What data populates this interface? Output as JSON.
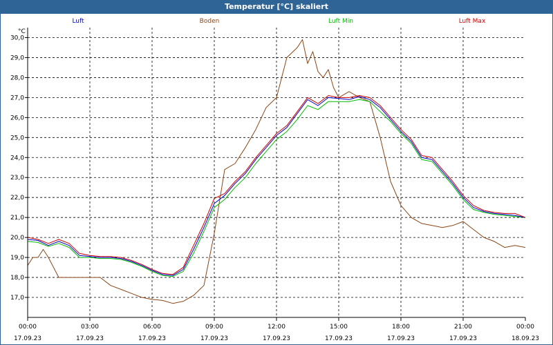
{
  "window": {
    "title": "Temperatur [°C] skaliert"
  },
  "chart_data": {
    "type": "line",
    "title": "Temperatur [°C] skaliert",
    "ylabel": "°C",
    "ylim": [
      16.0,
      30.5
    ],
    "xlim_hours": [
      0,
      24
    ],
    "grid": true,
    "legend_placement": "top",
    "yticks": [
      "17,0",
      "18,0",
      "19,0",
      "20,0",
      "21,0",
      "22,0",
      "23,0",
      "24,0",
      "25,0",
      "26,0",
      "27,0",
      "28,0",
      "29,0",
      "30,0"
    ],
    "xticks": [
      {
        "time": "00:00",
        "date": "17.09.23"
      },
      {
        "time": "03:00",
        "date": "17.09.23"
      },
      {
        "time": "06:00",
        "date": "17.09.23"
      },
      {
        "time": "09:00",
        "date": "17.09.23"
      },
      {
        "time": "12:00",
        "date": "17.09.23"
      },
      {
        "time": "15:00",
        "date": "17.09.23"
      },
      {
        "time": "18:00",
        "date": "17.09.23"
      },
      {
        "time": "21:00",
        "date": "17.09.23"
      },
      {
        "time": "00:00",
        "date": "18.09.23"
      }
    ],
    "series": [
      {
        "name": "Luft",
        "color": "#0000cc",
        "x": [
          0,
          0.5,
          1,
          1.5,
          2,
          2.5,
          3,
          3.5,
          4,
          4.5,
          5,
          5.5,
          6,
          6.5,
          7,
          7.5,
          8,
          8.5,
          9,
          9.5,
          10,
          10.5,
          11,
          11.5,
          12,
          12.5,
          13,
          13.5,
          14,
          14.5,
          15,
          15.5,
          16,
          16.5,
          17,
          17.5,
          18,
          18.5,
          19,
          19.5,
          20,
          20.5,
          21,
          21.5,
          22,
          22.5,
          23,
          23.5,
          24
        ],
        "y": [
          19.9,
          19.85,
          19.6,
          19.8,
          19.6,
          19.1,
          19.05,
          19.0,
          19.0,
          18.95,
          18.8,
          18.6,
          18.35,
          18.15,
          18.1,
          18.4,
          19.4,
          20.5,
          21.7,
          22.1,
          22.7,
          23.2,
          23.9,
          24.5,
          25.1,
          25.5,
          26.2,
          26.9,
          26.6,
          27.0,
          26.95,
          26.9,
          27.05,
          26.9,
          26.5,
          25.9,
          25.3,
          24.8,
          24.0,
          23.9,
          23.3,
          22.7,
          22.0,
          21.5,
          21.3,
          21.2,
          21.15,
          21.1,
          21.0
        ]
      },
      {
        "name": "Boden",
        "color": "#8b4513",
        "x": [
          0,
          0.25,
          0.5,
          0.75,
          1,
          1.5,
          2,
          2.5,
          3,
          3.5,
          4,
          4.5,
          5,
          5.5,
          6,
          6.5,
          7,
          7.5,
          8,
          8.5,
          9,
          9.5,
          10,
          10.5,
          11,
          11.5,
          12,
          12.5,
          13,
          13.25,
          13.5,
          13.75,
          14,
          14.25,
          14.5,
          14.75,
          15,
          15.5,
          16,
          16.5,
          17,
          17.5,
          18,
          18.5,
          19,
          19.5,
          20,
          20.5,
          21,
          21.5,
          22,
          22.5,
          23,
          23.5,
          24
        ],
        "y": [
          18.6,
          19.0,
          19.0,
          19.4,
          19.0,
          18.0,
          18.0,
          18.0,
          18.0,
          18.0,
          17.6,
          17.4,
          17.2,
          17.0,
          16.9,
          16.85,
          16.7,
          16.8,
          17.1,
          17.6,
          20.2,
          23.4,
          23.7,
          24.5,
          25.4,
          26.5,
          27.0,
          29.0,
          29.5,
          29.9,
          28.7,
          29.3,
          28.3,
          28.0,
          28.4,
          27.5,
          27.0,
          27.3,
          27.0,
          26.8,
          25.0,
          22.8,
          21.6,
          21.0,
          20.7,
          20.6,
          20.5,
          20.6,
          20.8,
          20.4,
          20.0,
          19.8,
          19.5,
          19.6,
          19.5
        ]
      },
      {
        "name": "Luft Min",
        "color": "#00bb00",
        "x": [
          0,
          0.5,
          1,
          1.5,
          2,
          2.5,
          3,
          3.5,
          4,
          4.5,
          5,
          5.5,
          6,
          6.5,
          7,
          7.5,
          8,
          8.5,
          9,
          9.5,
          10,
          10.5,
          11,
          11.5,
          12,
          12.5,
          13,
          13.5,
          14,
          14.5,
          15,
          15.5,
          16,
          16.5,
          17,
          17.5,
          18,
          18.5,
          19,
          19.5,
          20,
          20.5,
          21,
          21.5,
          22,
          22.5,
          23,
          23.5,
          24
        ],
        "y": [
          19.8,
          19.75,
          19.55,
          19.7,
          19.5,
          19.0,
          19.0,
          18.95,
          18.95,
          18.9,
          18.75,
          18.55,
          18.3,
          18.1,
          18.05,
          18.3,
          19.2,
          20.3,
          21.5,
          21.9,
          22.5,
          23.0,
          23.7,
          24.3,
          24.9,
          25.3,
          25.9,
          26.6,
          26.4,
          26.8,
          26.8,
          26.8,
          26.9,
          26.8,
          26.3,
          25.8,
          25.2,
          24.7,
          23.9,
          23.8,
          23.2,
          22.6,
          21.9,
          21.4,
          21.25,
          21.15,
          21.1,
          21.05,
          21.0
        ]
      },
      {
        "name": "Luft Max",
        "color": "#cc0000",
        "x": [
          0,
          0.5,
          1,
          1.5,
          2,
          2.5,
          3,
          3.5,
          4,
          4.5,
          5,
          5.5,
          6,
          6.5,
          7,
          7.5,
          8,
          8.5,
          9,
          9.5,
          10,
          10.5,
          11,
          11.5,
          12,
          12.5,
          13,
          13.5,
          14,
          14.5,
          15,
          15.5,
          16,
          16.5,
          17,
          17.5,
          18,
          18.5,
          19,
          19.5,
          20,
          20.5,
          21,
          21.5,
          22,
          22.5,
          23,
          23.5,
          24
        ],
        "y": [
          20.0,
          19.9,
          19.7,
          19.9,
          19.7,
          19.2,
          19.1,
          19.05,
          19.05,
          19.0,
          18.85,
          18.65,
          18.4,
          18.2,
          18.15,
          18.5,
          19.6,
          20.7,
          21.95,
          22.2,
          22.8,
          23.3,
          24.0,
          24.6,
          25.2,
          25.6,
          26.3,
          27.0,
          26.7,
          27.1,
          27.0,
          27.0,
          27.1,
          27.0,
          26.6,
          26.0,
          25.4,
          24.9,
          24.1,
          24.0,
          23.4,
          22.8,
          22.1,
          21.6,
          21.35,
          21.25,
          21.2,
          21.2,
          21.0
        ]
      }
    ]
  }
}
